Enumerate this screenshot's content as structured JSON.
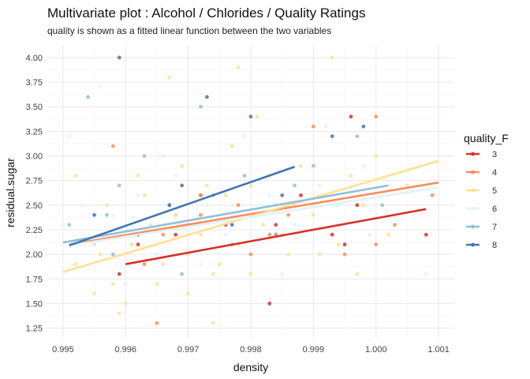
{
  "chart_data": {
    "type": "scatter",
    "title": "Multivariate plot : Alcohol / Chlorides / Quality Ratings",
    "subtitle": "quality is shown as a fitted linear function between the two variables",
    "xlabel": "density",
    "ylabel": "residual.sugar",
    "xlim": [
      0.99475,
      1.00125
    ],
    "ylim": [
      1.15,
      4.12
    ],
    "x_ticks": [
      0.995,
      0.996,
      0.997,
      0.998,
      0.999,
      1.0,
      1.001
    ],
    "x_tick_labels": [
      "0.995",
      "0.996",
      "0.997",
      "0.998",
      "0.999",
      "1.000",
      "1.001"
    ],
    "y_ticks": [
      1.25,
      1.5,
      1.75,
      2.0,
      2.25,
      2.5,
      2.75,
      3.0,
      3.25,
      3.5,
      3.75,
      4.0
    ],
    "y_tick_labels": [
      "1.25",
      "1.50",
      "1.75",
      "2.00",
      "2.25",
      "2.50",
      "2.75",
      "3.00",
      "3.25",
      "3.50",
      "3.75",
      "4.00"
    ],
    "grid": true,
    "legend": {
      "title": "quality_F",
      "position": "right"
    },
    "series": [
      {
        "name": "3",
        "color": "#d73027",
        "fit": {
          "x": [
            0.996,
            1.0008
          ],
          "y": [
            1.9,
            2.46
          ]
        },
        "points": [
          [
            0.9959,
            1.8
          ],
          [
            0.9962,
            2.1
          ],
          [
            0.9968,
            2.2
          ],
          [
            0.9972,
            2.6
          ],
          [
            0.9976,
            2.3
          ],
          [
            0.9984,
            2.2
          ],
          [
            0.9988,
            2.6
          ],
          [
            0.9993,
            2.2
          ],
          [
            0.9995,
            2.1
          ],
          [
            0.9996,
            3.4
          ],
          [
            0.9983,
            1.5
          ],
          [
            1.0008,
            2.2
          ],
          [
            0.9997,
            2.5
          ],
          [
            0.9984,
            2.3
          ]
        ]
      },
      {
        "name": "4",
        "color": "#fc8d59",
        "fit": {
          "x": [
            0.9951,
            1.001
          ],
          "y": [
            2.1,
            2.73
          ]
        },
        "points": [
          [
            0.9958,
            3.1
          ],
          [
            0.9965,
            1.3
          ],
          [
            0.9972,
            2.4
          ],
          [
            0.9983,
            2.2
          ],
          [
            0.999,
            3.3
          ],
          [
            1.0,
            3.4
          ],
          [
            1.0,
            2.1
          ],
          [
            0.9978,
            2.5
          ],
          [
            0.9966,
            2.2
          ],
          [
            0.9955,
            2.1
          ],
          [
            0.9963,
            1.9
          ],
          [
            0.998,
            2.0
          ],
          [
            0.9972,
            2.6
          ],
          [
            0.9986,
            2.4
          ],
          [
            1.0003,
            2.3
          ],
          [
            1.0009,
            2.6
          ],
          [
            0.9995,
            2.0
          ],
          [
            0.9968,
            2.4
          ]
        ]
      },
      {
        "name": "5",
        "color": "#fee090",
        "fit": {
          "x": [
            0.995,
            1.001
          ],
          "y": [
            1.82,
            2.95
          ]
        },
        "points": [
          [
            0.9952,
            1.9
          ],
          [
            0.9956,
            2.0
          ],
          [
            0.9958,
            1.7
          ],
          [
            0.9961,
            2.1
          ],
          [
            0.9964,
            2.3
          ],
          [
            0.9966,
            1.9
          ],
          [
            0.9968,
            2.4
          ],
          [
            0.997,
            2.0
          ],
          [
            0.9972,
            2.2
          ],
          [
            0.9974,
            1.8
          ],
          [
            0.9976,
            2.6
          ],
          [
            0.9978,
            2.1
          ],
          [
            0.998,
            2.7
          ],
          [
            0.9982,
            2.3
          ],
          [
            0.9984,
            2.5
          ],
          [
            0.9986,
            2.0
          ],
          [
            0.9988,
            2.9
          ],
          [
            0.999,
            2.4
          ],
          [
            0.9992,
            2.6
          ],
          [
            0.9994,
            2.1
          ],
          [
            0.9996,
            2.8
          ],
          [
            0.9998,
            2.5
          ],
          [
            1.0,
            3.0
          ],
          [
            1.0002,
            2.2
          ],
          [
            1.0005,
            2.7
          ],
          [
            0.9955,
            1.6
          ],
          [
            0.996,
            1.5
          ],
          [
            0.9965,
            1.7
          ],
          [
            0.997,
            1.6
          ],
          [
            0.9975,
            1.9
          ],
          [
            0.998,
            1.8
          ],
          [
            0.9985,
            2.2
          ],
          [
            0.9993,
            4.0
          ],
          [
            0.9978,
            3.9
          ],
          [
            0.9967,
            3.8
          ],
          [
            0.9974,
            1.3
          ],
          [
            0.9962,
            2.8
          ],
          [
            0.9981,
            3.4
          ],
          [
            0.9969,
            2.9
          ],
          [
            0.9977,
            3.1
          ],
          [
            0.9957,
            2.5
          ],
          [
            0.9963,
            2.6
          ],
          [
            0.9973,
            2.7
          ],
          [
            0.9983,
            2.8
          ],
          [
            0.9991,
            2.0
          ],
          [
            0.9997,
            1.8
          ],
          [
            0.9952,
            2.8
          ],
          [
            0.9959,
            1.4
          ]
        ]
      },
      {
        "name": "6",
        "color": "#e0f3f8",
        "fit": {
          "x": [
            0.9952,
            1.001
          ],
          "y": [
            2.1,
            2.68
          ]
        },
        "points": [
          [
            0.995,
            2.3
          ],
          [
            0.9953,
            2.5
          ],
          [
            0.9955,
            2.1
          ],
          [
            0.9958,
            2.4
          ],
          [
            0.9962,
            2.6
          ],
          [
            0.9965,
            2.0
          ],
          [
            0.9969,
            2.3
          ],
          [
            0.9973,
            2.5
          ],
          [
            0.9976,
            2.2
          ],
          [
            0.998,
            2.4
          ],
          [
            0.9983,
            2.6
          ],
          [
            0.9987,
            2.3
          ],
          [
            0.9991,
            2.7
          ],
          [
            0.9994,
            2.5
          ],
          [
            0.9998,
            2.9
          ],
          [
            1.0002,
            2.6
          ],
          [
            1.0006,
            2.4
          ],
          [
            0.9956,
            3.7
          ],
          [
            0.996,
            1.7
          ],
          [
            0.9966,
            3.0
          ],
          [
            0.9972,
            1.9
          ],
          [
            0.9979,
            3.2
          ],
          [
            0.9985,
            1.8
          ],
          [
            0.9992,
            3.3
          ],
          [
            0.9999,
            2.2
          ],
          [
            1.0008,
            1.8
          ],
          [
            0.9951,
            3.2
          ],
          [
            0.9968,
            2.8
          ]
        ]
      },
      {
        "name": "7",
        "color": "#91bfdb",
        "fit": {
          "x": [
            0.995,
            1.0002
          ],
          "y": [
            2.12,
            2.7
          ]
        },
        "points": [
          [
            0.9951,
            2.3
          ],
          [
            0.9954,
            3.6
          ],
          [
            0.9957,
            2.4
          ],
          [
            0.9959,
            2.7
          ],
          [
            0.9961,
            2.2
          ],
          [
            0.9963,
            3.0
          ],
          [
            0.9967,
            2.5
          ],
          [
            0.9969,
            1.8
          ],
          [
            0.997,
            2.3
          ],
          [
            0.9972,
            3.5
          ],
          [
            0.9974,
            2.6
          ],
          [
            0.9977,
            2.1
          ],
          [
            0.9979,
            2.8
          ],
          [
            0.9981,
            2.4
          ],
          [
            0.9984,
            2.2
          ],
          [
            0.9987,
            2.7
          ],
          [
            0.999,
            2.9
          ],
          [
            0.9997,
            3.2
          ],
          [
            1.0001,
            2.5
          ],
          [
            0.9958,
            2.0
          ]
        ]
      },
      {
        "name": "8",
        "color": "#4575b4",
        "fit": {
          "x": [
            0.9951,
            0.9987
          ],
          "y": [
            2.09,
            2.89
          ]
        },
        "points": [
          [
            0.9959,
            4.0
          ],
          [
            0.9967,
            2.5
          ],
          [
            0.9973,
            3.6
          ],
          [
            0.998,
            3.4
          ],
          [
            0.9969,
            2.7
          ],
          [
            0.9955,
            2.4
          ],
          [
            0.9985,
            2.6
          ],
          [
            0.9962,
            2.2
          ],
          [
            0.9977,
            2.3
          ],
          [
            0.9993,
            3.2
          ],
          [
            0.9998,
            3.3
          ]
        ]
      }
    ]
  }
}
